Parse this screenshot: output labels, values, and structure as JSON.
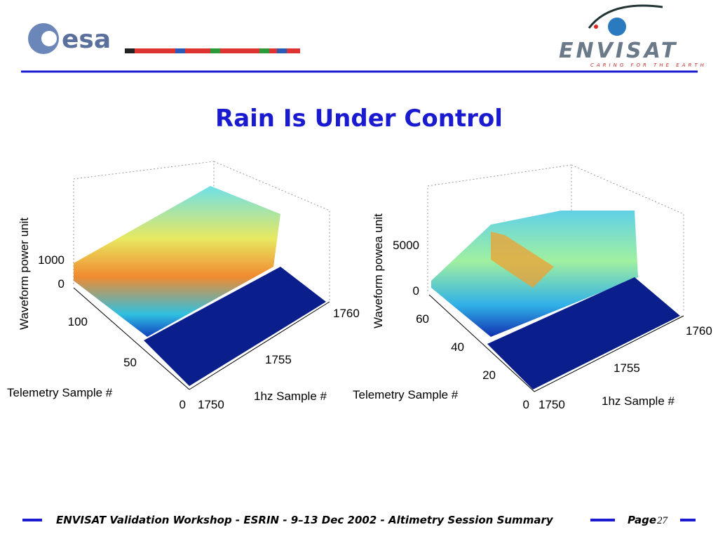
{
  "header": {
    "logo": "esa",
    "mission": "ENVISAT",
    "tagline": "CARING FOR THE EARTH"
  },
  "title": "Rain Is Under Control",
  "figures": [
    {
      "z_label": "Waveform power unit",
      "z_ticks": [
        1000,
        0
      ],
      "y_label": "Telemetry Sample #",
      "y_ticks": [
        100,
        50,
        0
      ],
      "x_label": "1hz Sample #",
      "x_ticks": [
        1750,
        1755,
        1760
      ]
    },
    {
      "z_label": "Waveform powea unit",
      "z_ticks": [
        5000,
        0
      ],
      "y_label": "Telemetry Sample #",
      "y_ticks": [
        60,
        40,
        20,
        0
      ],
      "x_label": "1hz Sample #",
      "x_ticks": [
        1750,
        1755,
        1760
      ]
    }
  ],
  "footer": {
    "text": "ENVISAT Validation Workshop - ESRIN - 9–13 Dec 2002 - Altimetry Session Summary",
    "page_label": "Page",
    "page_number": "27"
  }
}
